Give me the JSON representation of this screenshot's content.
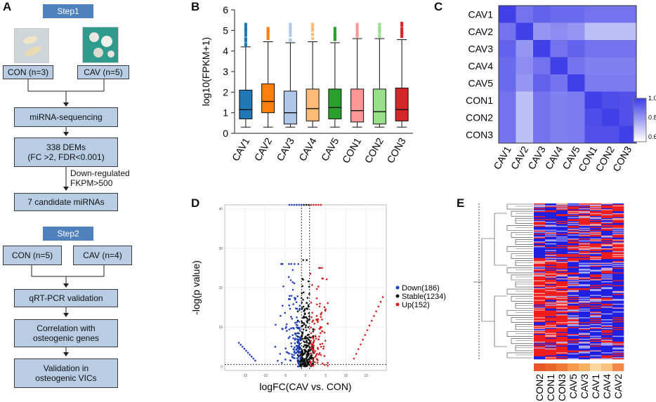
{
  "panels": {
    "a": "A",
    "b": "B",
    "c": "C",
    "d": "D",
    "e": "E"
  },
  "flow": {
    "step1": "Step1",
    "con1": "CON (n=3)",
    "cav1": "CAV (n=5)",
    "seq": "miRNA-sequencing",
    "dems": "338 DEMs\n(FC >2, FDR<0.001)",
    "filter_note": "Down-regulated\nFKPM>500",
    "candidates": "7 candidate miRNAs",
    "step2": "Step2",
    "con2": "CON (n=5)",
    "cav2": "CAV (n=4)",
    "qpcr": "qRT-PCR validation",
    "corr": "Correlation with\nosteogenic genes",
    "valid": "Validation in\nosteogenic VICs"
  },
  "colors": {
    "box": "#b8cce4",
    "step": "#4f81bd"
  },
  "chart_data": [
    {
      "type": "box",
      "panel": "B",
      "ylabel": "log10(FPKM+1)",
      "ylim": [
        0,
        6
      ],
      "yticks": [
        0,
        1,
        2,
        3,
        4,
        5,
        6
      ],
      "categories": [
        "CAV1",
        "CAV2",
        "CAV3",
        "CAV4",
        "CAV5",
        "CON1",
        "CON2",
        "CON3"
      ],
      "colors": [
        "#1f77b4",
        "#ff7f0e",
        "#aec7e8",
        "#ffbb78",
        "#2ca02c",
        "#ff9896",
        "#98df8a",
        "#d62728"
      ],
      "stats": [
        {
          "min": 0.3,
          "q1": 0.7,
          "median": 1.15,
          "q3": 2.1,
          "max": 4.2,
          "outliers": [
            4.35,
            4.55,
            4.75,
            4.95,
            5.15,
            5.3
          ]
        },
        {
          "min": 0.3,
          "q1": 1.0,
          "median": 1.55,
          "q3": 2.4,
          "max": 4.45,
          "outliers": [
            4.6,
            4.8,
            5.0,
            5.1
          ]
        },
        {
          "min": 0.3,
          "q1": 0.45,
          "median": 1.0,
          "q3": 2.05,
          "max": 4.4,
          "outliers": [
            4.55,
            4.75,
            4.95,
            5.15,
            5.3
          ]
        },
        {
          "min": 0.3,
          "q1": 0.6,
          "median": 1.2,
          "q3": 2.15,
          "max": 4.45,
          "outliers": [
            4.6,
            4.8,
            5.0,
            5.2,
            5.3
          ]
        },
        {
          "min": 0.3,
          "q1": 0.7,
          "median": 1.25,
          "q3": 2.15,
          "max": 4.4,
          "outliers": [
            4.55,
            4.75,
            4.95,
            5.1
          ]
        },
        {
          "min": 0.3,
          "q1": 0.55,
          "median": 1.1,
          "q3": 2.15,
          "max": 4.6,
          "outliers": [
            4.75,
            4.95,
            5.15,
            5.3
          ]
        },
        {
          "min": 0.3,
          "q1": 0.45,
          "median": 1.05,
          "q3": 2.15,
          "max": 4.6,
          "outliers": [
            4.75,
            4.95,
            5.15,
            5.3
          ]
        },
        {
          "min": 0.3,
          "q1": 0.6,
          "median": 1.15,
          "q3": 2.2,
          "max": 4.55,
          "outliers": [
            4.7,
            4.9,
            5.1,
            5.25,
            5.35
          ]
        }
      ]
    },
    {
      "type": "heatmap",
      "panel": "C",
      "rows": [
        "CAV1",
        "CAV2",
        "CAV3",
        "CAV4",
        "CAV5",
        "CON1",
        "CON2",
        "CON3"
      ],
      "cols": [
        "CAV1",
        "CAV2",
        "CAV3",
        "CAV4",
        "CAV5",
        "CON1",
        "CON2",
        "CON3"
      ],
      "values": [
        [
          1.0,
          0.88,
          0.92,
          0.9,
          0.9,
          0.88,
          0.88,
          0.88
        ],
        [
          0.88,
          1.0,
          0.8,
          0.82,
          0.8,
          0.7,
          0.7,
          0.7
        ],
        [
          0.92,
          0.8,
          1.0,
          0.88,
          0.92,
          0.88,
          0.88,
          0.88
        ],
        [
          0.9,
          0.82,
          0.88,
          1.0,
          0.88,
          0.85,
          0.85,
          0.85
        ],
        [
          0.9,
          0.8,
          0.92,
          0.88,
          1.0,
          0.86,
          0.86,
          0.86
        ],
        [
          0.88,
          0.7,
          0.88,
          0.85,
          0.86,
          1.0,
          0.97,
          0.96
        ],
        [
          0.88,
          0.7,
          0.88,
          0.85,
          0.86,
          0.97,
          1.0,
          0.96
        ],
        [
          0.88,
          0.7,
          0.88,
          0.85,
          0.86,
          0.96,
          0.96,
          1.0
        ]
      ],
      "colorbar": {
        "ticks": [
          "1.0",
          "0.8",
          "0.6"
        ],
        "range": [
          0.55,
          1.0
        ]
      }
    },
    {
      "type": "scatter",
      "panel": "D",
      "xlabel": "logFC(CAV vs. CON)",
      "ylabel": "-log(p value)",
      "xlim": [
        -20,
        20
      ],
      "ylim": [
        -1,
        41
      ],
      "xticks": [
        "-15",
        "-10",
        "-5",
        "0",
        "5",
        "10",
        "15"
      ],
      "yticks": [
        "0",
        "10",
        "20",
        "30",
        "40"
      ],
      "legend": [
        {
          "label": "Down(186)",
          "color": "#1f3fbf"
        },
        {
          "label": "Stable(1234)",
          "color": "#111111"
        },
        {
          "label": "Up(152)",
          "color": "#d62020"
        }
      ]
    },
    {
      "type": "heatmap",
      "panel": "E",
      "cols": [
        "CON2",
        "CON1",
        "CON3",
        "CAV5",
        "CAV3",
        "CAV1",
        "CAV4",
        "CAV2"
      ],
      "annotation_colors": [
        "#e8562a",
        "#e8662a",
        "#ee7a36",
        "#f59a4a",
        "#f7b060",
        "#fbd6a0",
        "#f9c480",
        "#f2884a"
      ]
    }
  ]
}
